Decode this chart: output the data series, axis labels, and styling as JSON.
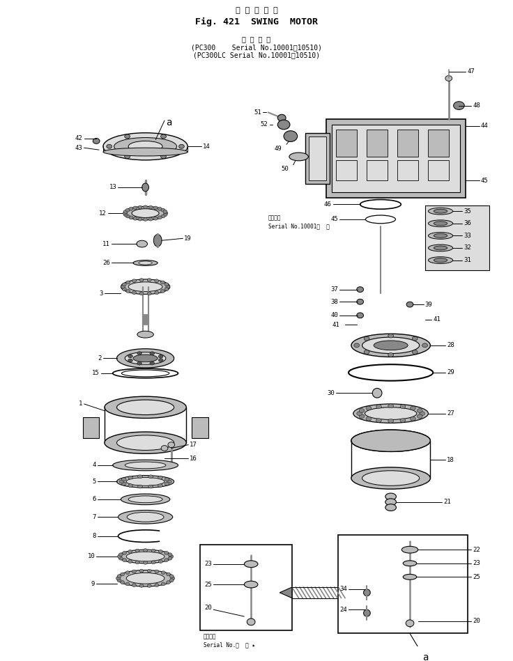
{
  "title_jp": "旋 回 モ ー タ",
  "title_en": "Fig. 421  SWING  MOTOR",
  "subtitle_jp": "適 用 号 機",
  "subtitle_line1": "(PC300    Serial No.10001～10510)",
  "subtitle_line2": "(PC300LC Serial No.10001～10510)",
  "bg_color": "#ffffff",
  "fig_width": 7.36,
  "fig_height": 9.49,
  "dpi": 100,
  "lc": "black",
  "gray1": "#555555",
  "gray2": "#888888",
  "gray3": "#bbbbbb",
  "gray4": "#dddddd"
}
